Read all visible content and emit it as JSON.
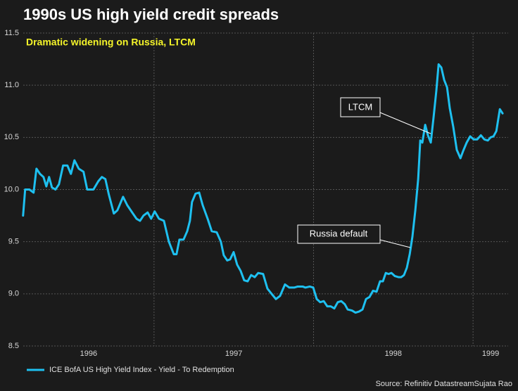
{
  "chart_data": {
    "type": "line",
    "title": "1990s US high yield credit spreads",
    "subtitle": "Dramatic widening on Russia, LTCM",
    "source": "Source: Refinitiv DatastreamSujata Rao",
    "annotations": [
      "LTCM",
      "Russia default"
    ],
    "xlim": [
      1996.18,
      1999.22
    ],
    "xticks": [
      {
        "value": 1996,
        "label": "1996"
      },
      {
        "value": 1997,
        "label": "1997"
      },
      {
        "value": 1998,
        "label": "1998"
      },
      {
        "value": 1999,
        "label": "1999"
      }
    ],
    "ylim": [
      8.5,
      11.5
    ],
    "yticks": [
      8.5,
      {
        "value": 9,
        "label": "9.0"
      },
      9.5,
      {
        "value": 10,
        "label": "10.0"
      },
      10.5,
      {
        "value": 11,
        "label": "11.0"
      },
      11.5
    ],
    "grid": true,
    "legend": "bottom-left",
    "x": [
      1996.179,
      1996.192,
      1996.219,
      1996.245,
      1996.263,
      1996.285,
      1996.307,
      1996.325,
      1996.342,
      1996.36,
      1996.382,
      1996.404,
      1996.43,
      1996.457,
      1996.479,
      1996.501,
      1996.528,
      1996.558,
      1996.581,
      1996.62,
      1996.651,
      1996.673,
      1996.695,
      1996.717,
      1996.748,
      1996.77,
      1996.806,
      1996.832,
      1996.863,
      1996.89,
      1996.912,
      1996.934,
      1996.96,
      1996.982,
      1997.004,
      1997.031,
      1997.062,
      1997.093,
      1997.124,
      1997.141,
      1997.159,
      1997.185,
      1997.208,
      1997.225,
      1997.238,
      1997.26,
      1997.283,
      1997.305,
      1997.336,
      1997.362,
      1997.393,
      1997.419,
      1997.437,
      1997.459,
      1997.477,
      1997.499,
      1997.521,
      1997.543,
      1997.565,
      1997.587,
      1997.609,
      1997.631,
      1997.653,
      1997.684,
      1997.711,
      1997.737,
      1997.764,
      1997.79,
      1997.821,
      1997.848,
      1997.879,
      1997.901,
      1997.932,
      1997.949,
      1997.976,
      1997.998,
      1998.02,
      1998.042,
      1998.064,
      1998.086,
      1998.108,
      1998.13,
      1998.152,
      1998.174,
      1998.196,
      1998.214,
      1998.241,
      1998.263,
      1998.285,
      1998.307,
      1998.329,
      1998.351,
      1998.373,
      1998.395,
      1998.417,
      1998.435,
      1998.453,
      1998.47,
      1998.488,
      1998.51,
      1998.532,
      1998.55,
      1998.567,
      1998.585,
      1998.603,
      1998.62,
      1998.638,
      1998.656,
      1998.669,
      1998.682,
      1998.7,
      1998.717,
      1998.735,
      1998.753,
      1998.77,
      1998.784,
      1998.801,
      1998.819,
      1998.837,
      1998.854,
      1998.876,
      1998.898,
      1998.921,
      1998.938,
      1998.96,
      1998.982,
      1999.004,
      1999.026,
      1999.049,
      1999.071,
      1999.093,
      1999.11,
      1999.128,
      1999.146,
      1999.168,
      1999.185
    ],
    "series": [
      {
        "name": "ICE BofA US High Yield Index - Yield - To Redemption",
        "color": "#1ec0f0",
        "values": [
          9.75,
          10.0,
          10.0,
          9.97,
          10.2,
          10.15,
          10.12,
          10.03,
          10.12,
          10.02,
          10.0,
          10.05,
          10.23,
          10.23,
          10.15,
          10.28,
          10.2,
          10.17,
          10.0,
          10.0,
          10.08,
          10.12,
          10.1,
          9.95,
          9.77,
          9.8,
          9.93,
          9.85,
          9.78,
          9.72,
          9.7,
          9.75,
          9.78,
          9.72,
          9.79,
          9.72,
          9.7,
          9.5,
          9.38,
          9.38,
          9.52,
          9.52,
          9.6,
          9.7,
          9.88,
          9.96,
          9.97,
          9.85,
          9.72,
          9.6,
          9.59,
          9.5,
          9.37,
          9.32,
          9.33,
          9.4,
          9.28,
          9.22,
          9.13,
          9.12,
          9.18,
          9.16,
          9.2,
          9.19,
          9.05,
          9.0,
          8.95,
          8.98,
          9.09,
          9.06,
          9.06,
          9.07,
          9.07,
          9.06,
          9.07,
          9.06,
          8.95,
          8.92,
          8.93,
          8.88,
          8.88,
          8.86,
          8.92,
          8.93,
          8.9,
          8.85,
          8.84,
          8.82,
          8.83,
          8.85,
          8.95,
          8.97,
          9.03,
          9.02,
          9.12,
          9.12,
          9.2,
          9.19,
          9.2,
          9.17,
          9.16,
          9.16,
          9.18,
          9.25,
          9.38,
          9.55,
          9.8,
          10.1,
          10.47,
          10.45,
          10.62,
          10.52,
          10.45,
          10.7,
          10.95,
          11.2,
          11.17,
          11.05,
          10.98,
          10.78,
          10.6,
          10.38,
          10.3,
          10.37,
          10.45,
          10.51,
          10.48,
          10.48,
          10.52,
          10.48,
          10.47,
          10.5,
          10.51,
          10.56,
          10.77,
          10.73
        ]
      }
    ]
  }
}
